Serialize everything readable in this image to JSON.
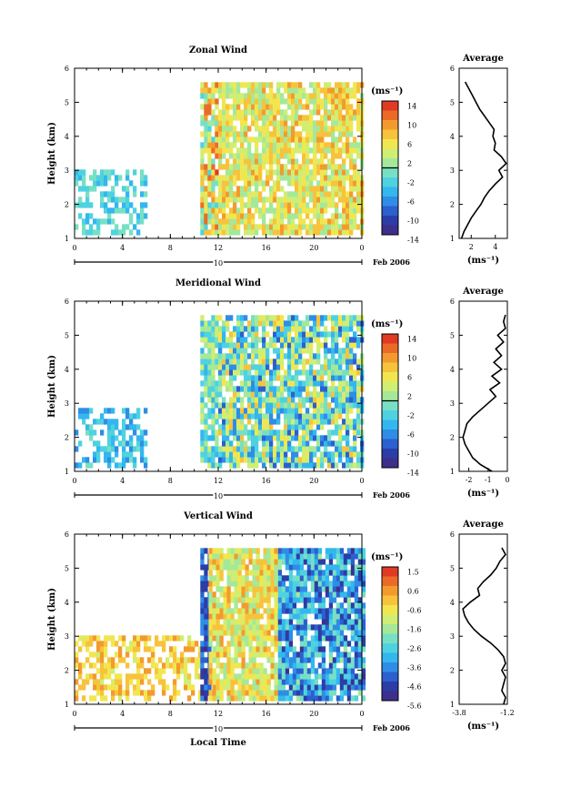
{
  "chart_data": [
    {
      "type": "heatmap",
      "title": "Zonal Wind",
      "ylabel": "Height (km)",
      "xlabel": "",
      "date_label": "Feb 2006",
      "day_label": "10",
      "ylim": [
        1,
        6
      ],
      "y_ticks": [
        "1",
        "2",
        "3",
        "4",
        "5",
        "6"
      ],
      "x_ticks": [
        "0",
        "4",
        "8",
        "12",
        "16",
        "20",
        "0"
      ],
      "colorbar": {
        "unit": "(ms⁻¹)",
        "labels": [
          "14",
          "10",
          "6",
          "2",
          "-2",
          "-6",
          "-10",
          "-14"
        ],
        "range": [
          -16,
          16
        ],
        "zero_line": true
      },
      "approx_field": {
        "gaps_note": "",
        "regions": [
          {
            "t_start": 0,
            "t_end": 6,
            "h_start": 1.1,
            "h_end": 2.9,
            "value_range": [
              -6,
              0
            ]
          },
          {
            "t_start": 10.5,
            "t_end": 12,
            "h_start": 1.1,
            "h_end": 5.5,
            "value_range": [
              -4,
              14
            ]
          },
          {
            "t_start": 12,
            "t_end": 24,
            "h_start": 1.1,
            "h_end": 5.5,
            "value_range": [
              0,
              10
            ]
          }
        ]
      },
      "average_profile": {
        "title": "Average",
        "xlabel": "(ms⁻¹)",
        "x_ticks": [
          "2",
          "4"
        ],
        "xlim": [
          1,
          5
        ],
        "height": [
          1.0,
          1.2,
          1.4,
          1.6,
          1.8,
          2.0,
          2.2,
          2.4,
          2.6,
          2.8,
          3.0,
          3.2,
          3.4,
          3.6,
          3.8,
          4.0,
          4.2,
          4.4,
          4.6,
          4.8,
          5.0,
          5.2,
          5.4,
          5.6
        ],
        "value": [
          1.2,
          1.4,
          1.7,
          2.0,
          2.4,
          2.8,
          3.1,
          3.5,
          4.0,
          4.6,
          4.3,
          4.9,
          4.5,
          3.9,
          4.0,
          3.8,
          3.9,
          3.5,
          3.1,
          2.7,
          2.4,
          2.1,
          1.8,
          1.5
        ]
      }
    },
    {
      "type": "heatmap",
      "title": "Meridional Wind",
      "ylabel": "Height (km)",
      "xlabel": "",
      "date_label": "Feb 2006",
      "day_label": "10",
      "ylim": [
        1,
        6
      ],
      "y_ticks": [
        "1",
        "2",
        "3",
        "4",
        "5",
        "6"
      ],
      "x_ticks": [
        "0",
        "4",
        "8",
        "12",
        "16",
        "20",
        "0"
      ],
      "colorbar": {
        "unit": "(ms⁻¹)",
        "labels": [
          "14",
          "10",
          "6",
          "2",
          "-2",
          "-6",
          "-10",
          "-14"
        ],
        "range": [
          -16,
          16
        ],
        "zero_line": true
      },
      "approx_field": {
        "regions": [
          {
            "t_start": 0,
            "t_end": 6,
            "h_start": 1.1,
            "h_end": 2.8,
            "value_range": [
              -8,
              -2
            ]
          },
          {
            "t_start": 10.5,
            "t_end": 12,
            "h_start": 1.1,
            "h_end": 5.5,
            "value_range": [
              -6,
              4
            ]
          },
          {
            "t_start": 12,
            "t_end": 24,
            "h_start": 1.1,
            "h_end": 5.5,
            "value_range": [
              -10,
              8
            ]
          }
        ]
      },
      "average_profile": {
        "title": "Average",
        "xlabel": "(ms⁻¹)",
        "x_ticks": [
          "-2",
          "-1",
          "0"
        ],
        "xlim": [
          -2.5,
          0
        ],
        "height": [
          1.0,
          1.2,
          1.4,
          1.6,
          1.8,
          2.0,
          2.2,
          2.4,
          2.6,
          2.8,
          3.0,
          3.2,
          3.4,
          3.6,
          3.8,
          4.0,
          4.2,
          4.4,
          4.6,
          4.8,
          5.0,
          5.2,
          5.4,
          5.6
        ],
        "value": [
          -0.8,
          -1.4,
          -1.8,
          -2.0,
          -2.2,
          -2.3,
          -2.2,
          -2.1,
          -1.8,
          -1.4,
          -1.0,
          -0.6,
          -0.9,
          -0.4,
          -0.8,
          -0.3,
          -0.7,
          -0.3,
          -0.6,
          -0.2,
          -0.5,
          -0.1,
          -0.2,
          -0.1
        ]
      }
    },
    {
      "type": "heatmap",
      "title": "Vertical Wind",
      "ylabel": "Height (km)",
      "xlabel": "Local Time",
      "date_label": "Feb 2006",
      "day_label": "10",
      "ylim": [
        1,
        6
      ],
      "y_ticks": [
        "1",
        "2",
        "3",
        "4",
        "5",
        "6"
      ],
      "x_ticks": [
        "0",
        "4",
        "8",
        "12",
        "16",
        "20",
        "0"
      ],
      "colorbar": {
        "unit": "(ms⁻¹)",
        "labels": [
          "1.5",
          "0.6",
          "-0.6",
          "-1.6",
          "-2.6",
          "-3.6",
          "-4.6",
          "-5.6"
        ],
        "range": [
          -6.1,
          2.0
        ],
        "zero_line": false
      },
      "approx_field": {
        "regions": [
          {
            "t_start": 0,
            "t_end": 10.5,
            "h_start": 1.1,
            "h_end": 3.0,
            "value_range": [
              -1.0,
              0.6
            ]
          },
          {
            "t_start": 10.5,
            "t_end": 11.2,
            "h_start": 1.1,
            "h_end": 5.5,
            "value_range": [
              -5.6,
              -4.0
            ]
          },
          {
            "t_start": 11.2,
            "t_end": 17,
            "h_start": 1.1,
            "h_end": 5.5,
            "value_range": [
              -2.0,
              0.6
            ]
          },
          {
            "t_start": 17,
            "t_end": 24,
            "h_start": 1.1,
            "h_end": 5.5,
            "value_range": [
              -5.6,
              -2.0
            ]
          }
        ]
      },
      "average_profile": {
        "title": "Average",
        "xlabel": "(ms⁻¹)",
        "x_ticks": [
          "-3.8",
          "-1.2"
        ],
        "xlim": [
          -3.8,
          -1.2
        ],
        "height": [
          1.0,
          1.2,
          1.4,
          1.6,
          1.8,
          2.0,
          2.2,
          2.4,
          2.6,
          2.8,
          3.0,
          3.2,
          3.4,
          3.6,
          3.8,
          4.0,
          4.2,
          4.4,
          4.6,
          4.8,
          5.0,
          5.2,
          5.4,
          5.6
        ],
        "value": [
          -1.4,
          -1.3,
          -1.5,
          -1.4,
          -1.3,
          -1.5,
          -1.3,
          -1.4,
          -1.7,
          -2.1,
          -2.6,
          -3.0,
          -3.3,
          -3.5,
          -3.6,
          -3.2,
          -2.7,
          -2.8,
          -2.5,
          -2.1,
          -1.8,
          -1.6,
          -1.3,
          -1.5
        ]
      }
    }
  ]
}
